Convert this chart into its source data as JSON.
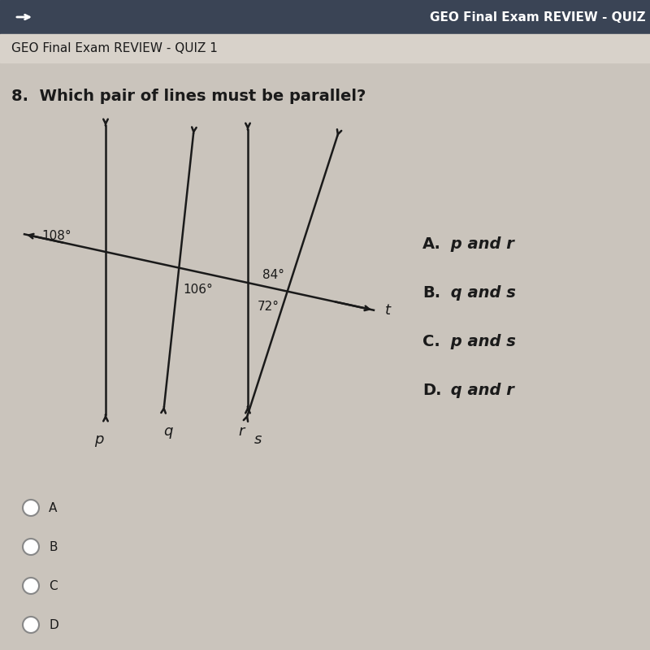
{
  "title_bar": "GEO Final Exam REVIEW - QUIZ",
  "subtitle": "GEO Final Exam REVIEW - QUIZ 1",
  "question": "8.  Which pair of lines must be parallel?",
  "angle_108": "108°",
  "angle_106": "106°",
  "angle_72": "72°",
  "angle_84": "84°",
  "line_labels": [
    "p",
    "q",
    "r",
    "s"
  ],
  "t_label": "t",
  "choices_bold": [
    "A.",
    "B.",
    "C.",
    "D."
  ],
  "choices_italic": [
    " p and r",
    " q and s",
    " p and s",
    " q and r"
  ],
  "radio_labels": [
    "A",
    "B",
    "C",
    "D"
  ],
  "bg_color": "#cac4bc",
  "header_bg": "#3a4455",
  "header_text_color": "#ffffff",
  "line_color": "#1a1a1a",
  "text_color": "#1a1a1a",
  "subtitle_bg": "#d8d2ca"
}
